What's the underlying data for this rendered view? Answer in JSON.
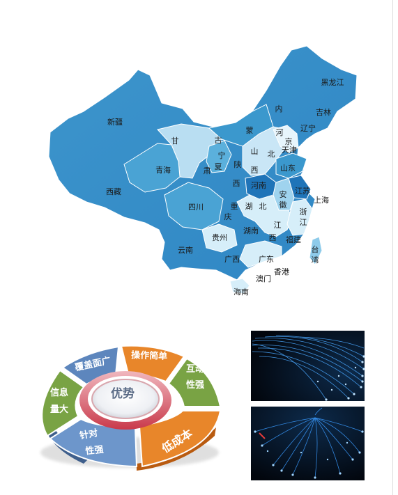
{
  "map": {
    "provinces": [
      "黑龙江",
      "吉林",
      "辽宁",
      "内",
      "蒙",
      "古",
      "新疆",
      "甘",
      "宁",
      "夏",
      "肃",
      "青海",
      "西藏",
      "陕",
      "西",
      "山",
      "西",
      "河",
      "北",
      "京",
      "天津",
      "山东",
      "河南",
      "江苏",
      "上海",
      "安",
      "徽",
      "湖",
      "北",
      "重",
      "庆",
      "四川",
      "浙",
      "江",
      "湖南",
      "江",
      "西",
      "贵州",
      "福建",
      "云南",
      "广西",
      "广东",
      "台",
      "湾",
      "香港",
      "澳门",
      "海南"
    ]
  },
  "advantages": {
    "center": "优势",
    "segments": [
      {
        "line1": "覆盖面广",
        "line2": ""
      },
      {
        "line1": "操作简单",
        "line2": ""
      },
      {
        "line1": "互动",
        "line2": "性强"
      },
      {
        "line1": "低成本",
        "line2": ""
      },
      {
        "line1": "针对",
        "line2": "性强"
      },
      {
        "line1": "信息",
        "line2": "量大"
      }
    ]
  },
  "colors": {
    "map_dark": "#2f86c4",
    "map_mid": "#4aa3d4",
    "map_light": "#8ecbea",
    "map_pale": "#d6eef9",
    "seg_blue": "#5d86bd",
    "seg_orange": "#e8862a",
    "seg_green": "#79a344",
    "fiber_glow": "#4aa8ff"
  }
}
